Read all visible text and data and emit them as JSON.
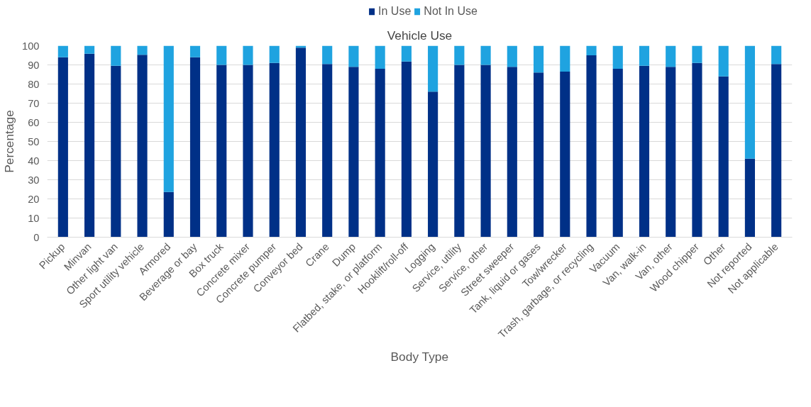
{
  "chart_data": {
    "type": "bar",
    "title": "Vehicle Use",
    "xlabel": "Body Type",
    "ylabel": "Percentage",
    "stacked": true,
    "categories": [
      "Pickup",
      "Minvan",
      "Other light van",
      "Sport utility vehicle",
      "Armored",
      "Beverage or bay",
      "Box truck",
      "Concrete mixer",
      "Concrete pumper",
      "Conveyor bed",
      "Crane",
      "Dump",
      "Flatbed, stake, or platform",
      "Hooklift/roll-off",
      "Logging",
      "Service, utility",
      "Service, other",
      "Street sweeper",
      "Tank, liquid or gases",
      "Tow/wrecker",
      "Trash, garbage, or recycling",
      "Vacuum",
      "Van, walk-in",
      "Van, other",
      "Wood chipper",
      "Other",
      "Not reported",
      "Not applicable"
    ],
    "series": [
      {
        "name": "In Use",
        "color": "#003087",
        "values": [
          94,
          95.8,
          89.5,
          95.3,
          23.6,
          94,
          90,
          90,
          91,
          99,
          90.5,
          89,
          88,
          91.8,
          76,
          90,
          90,
          89,
          86,
          86.5,
          95,
          88,
          89.5,
          89,
          91,
          84,
          41,
          90.5
        ]
      },
      {
        "name": "Not In Use",
        "color": "#1fa3e0",
        "values": [
          6,
          4.2,
          10.5,
          4.7,
          76.4,
          6,
          10,
          10,
          9,
          1,
          9.5,
          11,
          12,
          8.2,
          24,
          10,
          10,
          11,
          14,
          13.5,
          5,
          12,
          10.5,
          11,
          9,
          16,
          59,
          9.5
        ]
      }
    ],
    "ylim": [
      0,
      100
    ],
    "yticks": [
      0,
      10,
      20,
      30,
      40,
      50,
      60,
      70,
      80,
      90,
      100
    ],
    "grid": "y",
    "legend": "top"
  }
}
